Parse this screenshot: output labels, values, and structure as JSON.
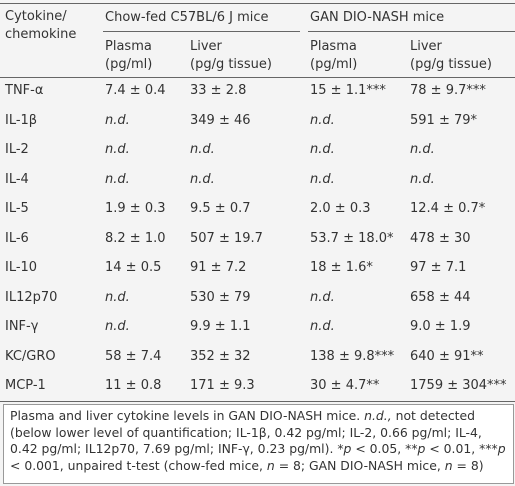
{
  "table": {
    "corner": [
      "Cytokine/",
      "chemokine"
    ],
    "groups": [
      "Chow-fed C57BL/6 J mice",
      "GAN DIO-NASH mice"
    ],
    "subheaders": [
      [
        "Plasma",
        "(pg/ml)"
      ],
      [
        "Liver",
        "(pg/g tissue)"
      ],
      [
        "Plasma",
        "(pg/ml)"
      ],
      [
        "Liver",
        "(pg/g tissue)"
      ]
    ],
    "rows": [
      [
        "TNF-α",
        "7.4 ± 0.4",
        "33 ± 2.8",
        "15 ± 1.1***",
        "78 ± 9.7***"
      ],
      [
        "IL-1β",
        {
          "text": "n.d.",
          "italic": true
        },
        "349 ± 46",
        {
          "text": "n.d.",
          "italic": true
        },
        "591 ± 79*"
      ],
      [
        "IL-2",
        {
          "text": "n.d.",
          "italic": true
        },
        {
          "text": "n.d.",
          "italic": true
        },
        {
          "text": "n.d.",
          "italic": true
        },
        {
          "text": "n.d.",
          "italic": true
        }
      ],
      [
        "IL-4",
        {
          "text": "n.d.",
          "italic": true
        },
        {
          "text": "n.d.",
          "italic": true
        },
        {
          "text": "n.d.",
          "italic": true
        },
        {
          "text": "n.d.",
          "italic": true
        }
      ],
      [
        "IL-5",
        "1.9 ± 0.3",
        "9.5 ± 0.7",
        "2.0 ± 0.3",
        "12.4 ± 0.7*"
      ],
      [
        "IL-6",
        "8.2 ± 1.0",
        "507 ± 19.7",
        "53.7 ± 18.0*",
        "478 ± 30"
      ],
      [
        "IL-10",
        "14 ± 0.5",
        "91 ± 7.2",
        "18 ± 1.6*",
        "97 ± 7.1"
      ],
      [
        "IL12p70",
        {
          "text": "n.d.",
          "italic": true
        },
        "530 ± 79",
        {
          "text": "n.d.",
          "italic": true
        },
        "658 ± 44"
      ],
      [
        "INF-γ",
        {
          "text": "n.d.",
          "italic": true
        },
        "9.9 ± 1.1",
        {
          "text": "n.d.",
          "italic": true
        },
        "9.0 ± 1.9"
      ],
      [
        "KC/GRO",
        "58 ± 7.4",
        "352 ± 32",
        "138 ± 9.8***",
        "640 ± 91**"
      ],
      [
        "MCP-1",
        "11 ± 0.8",
        "171 ± 9.3",
        "30 ± 4.7**",
        "1759 ± 304***"
      ]
    ]
  },
  "footnote": [
    {
      "text": "Plasma and liver cytokine levels in GAN DIO-NASH mice. ",
      "italic": false
    },
    {
      "text": "n.d.,",
      "italic": true
    },
    {
      "text": " not detected (below lower level of quantification; IL-1β, 0.42 pg/ml; IL-2, 0.66 pg/ml; IL-4, 0.42 pg/ml; IL12p70, 7.69 pg/ml; INF-γ, 0.23 pg/ml). ",
      "italic": false
    },
    {
      "text": "*p",
      "italic": true
    },
    {
      "text": " < 0.05, ",
      "italic": false
    },
    {
      "text": "**p",
      "italic": true
    },
    {
      "text": " < 0.01, ",
      "italic": false
    },
    {
      "text": "***p",
      "italic": true
    },
    {
      "text": " < 0.001, unpaired t-test (chow-fed mice, ",
      "italic": false
    },
    {
      "text": "n",
      "italic": true
    },
    {
      "text": " = 8; GAN DIO-NASH mice, ",
      "italic": false
    },
    {
      "text": "n",
      "italic": true
    },
    {
      "text": " = 8)",
      "italic": false
    }
  ]
}
